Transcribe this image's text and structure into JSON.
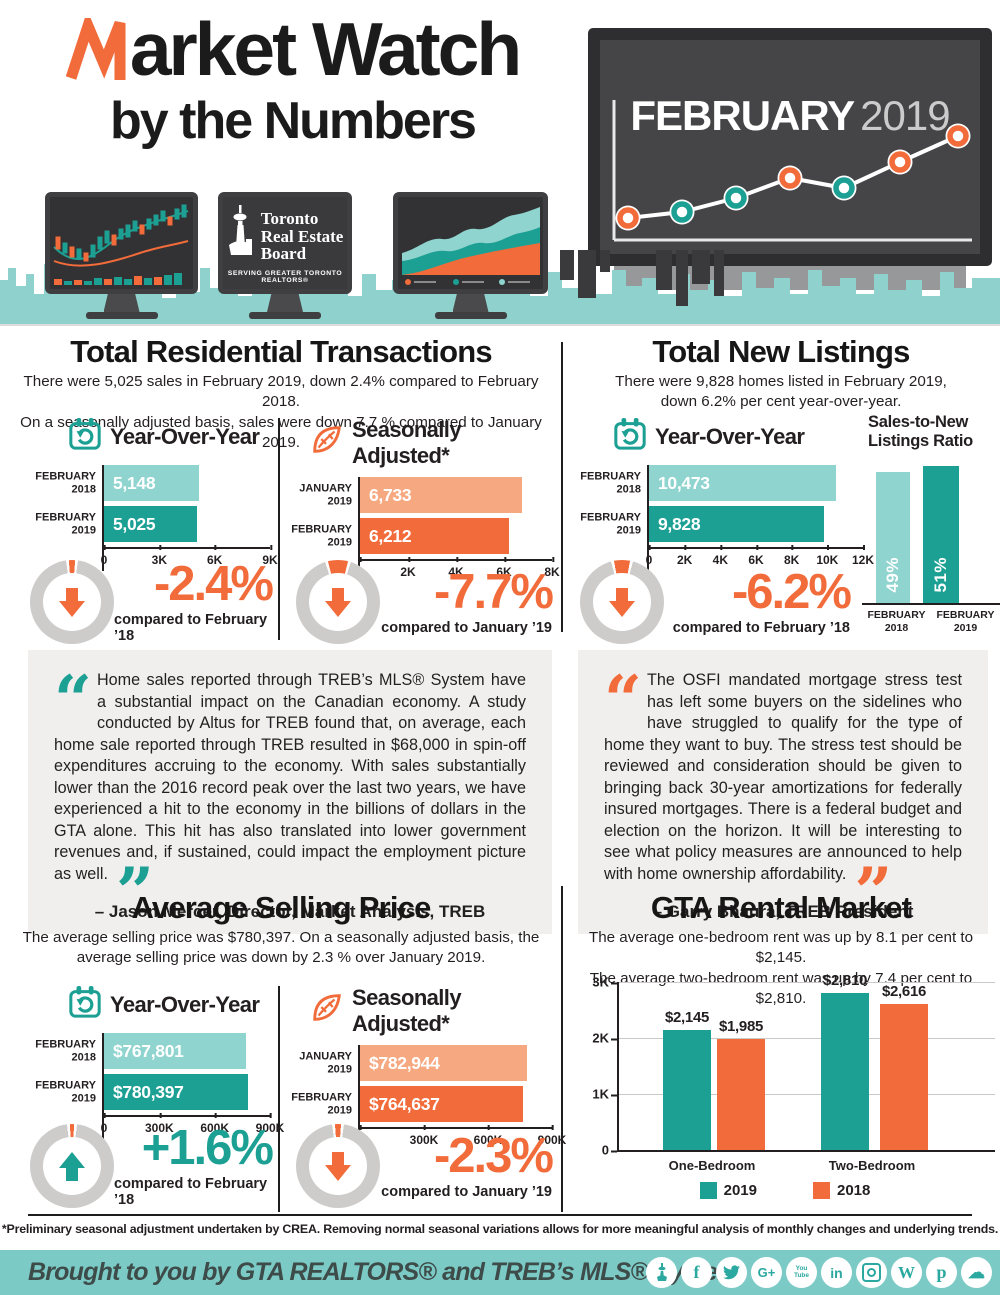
{
  "palette": {
    "teal": "#1DA094",
    "teal_light": "#8FD4CF",
    "orange": "#F26B3A",
    "orange_light": "#F6A981",
    "ring": "#CDCCCB",
    "ink": "#231F20",
    "band": "#8ED1CD",
    "footer_band": "#7CCAC6",
    "quote_bg": "#F0EFEE"
  },
  "header": {
    "title_rest": "arket Watch",
    "subtitle": "by the Numbers",
    "board": {
      "month": "FEBRUARY",
      "year": "2019"
    },
    "logo": {
      "line1": "Toronto",
      "line2": "Real Estate",
      "line3": "Board",
      "tagline": "SERVING GREATER TORONTO REALTORS®"
    }
  },
  "left": {
    "transactions": {
      "title": "Total Residential Transactions",
      "subtitle1": "There were 5,025 sales in February 2019, down 2.4% compared to February 2018.",
      "subtitle2": "On a seasonally adjusted basis, sales were down 7.7 % compared to January 2019.",
      "yoy": {
        "label": "Year-Over-Year",
        "axis_max": 9000,
        "bars": [
          {
            "line1": "FEBRUARY",
            "line2": "2018",
            "display": "5,148",
            "value": 5148
          },
          {
            "line1": "FEBRUARY",
            "line2": "2019",
            "display": "5,025",
            "value": 5025
          }
        ],
        "ticks": [
          {
            "label": "0",
            "value": 0
          },
          {
            "label": "3K",
            "value": 3000
          },
          {
            "label": "6K",
            "value": 6000
          },
          {
            "label": "9K",
            "value": 9000
          }
        ],
        "change": {
          "value": "-2.4%",
          "caption": "compared to February ’18",
          "pct": 2.4,
          "dir": "down",
          "color": "#F26B3A"
        }
      },
      "sa": {
        "label": "Seasonally Adjusted*",
        "axis_max": 8000,
        "bars": [
          {
            "line1": "JANUARY",
            "line2": "2019",
            "display": "6,733",
            "value": 6733
          },
          {
            "line1": "FEBRUARY",
            "line2": "2019",
            "display": "6,212",
            "value": 6212
          }
        ],
        "ticks": [
          {
            "label": "0",
            "value": 0
          },
          {
            "label": "2K",
            "value": 2000
          },
          {
            "label": "4K",
            "value": 4000
          },
          {
            "label": "6K",
            "value": 6000
          },
          {
            "label": "8K",
            "value": 8000
          }
        ],
        "change": {
          "value": "-7.7%",
          "caption": "compared to January ’19",
          "pct": 7.7,
          "dir": "down",
          "color": "#F26B3A"
        }
      }
    },
    "quote": {
      "text": "Home sales reported through TREB’s MLS® System have a substantial impact on the Canadian economy. A study conducted by Altus for TREB found that, on average, each home sale reported through TREB resulted in $68,000 in spin-off expenditures accruing to the economy. With sales substantially lower than the 2016 record peak over the last two years, we have experienced a hit to the economy in the billions of dollars in the GTA alone. This hit has also translated into lower government revenues and, if sustained, could impact the employment picture as well.",
      "attribution": "– Jason Mercer, Director, Market Analysis, TREB"
    },
    "price": {
      "title": "Average Selling Price",
      "subtitle1": "The average selling price was $780,397. On a seasonally adjusted basis, the",
      "subtitle2": "average selling price was down by 2.3 % over January 2019.",
      "yoy": {
        "label": "Year-Over-Year",
        "axis_max": 900000,
        "bars": [
          {
            "line1": "FEBRUARY",
            "line2": "2018",
            "display": "$767,801",
            "value": 767801
          },
          {
            "line1": "FEBRUARY",
            "line2": "2019",
            "display": "$780,397",
            "value": 780397
          }
        ],
        "ticks": [
          {
            "label": "0",
            "value": 0
          },
          {
            "label": "300K",
            "value": 300000
          },
          {
            "label": "600K",
            "value": 600000
          },
          {
            "label": "900K",
            "value": 900000
          }
        ],
        "change": {
          "value": "+1.6%",
          "caption": "compared to February ’18",
          "pct": 1.6,
          "dir": "up",
          "color": "#1DA094"
        }
      },
      "sa": {
        "label": "Seasonally Adjusted*",
        "axis_max": 900000,
        "bars": [
          {
            "line1": "JANUARY",
            "line2": "2019",
            "display": "$782,944",
            "value": 782944
          },
          {
            "line1": "FEBRUARY",
            "line2": "2019",
            "display": "$764,637",
            "value": 764637
          }
        ],
        "ticks": [
          {
            "label": "0",
            "value": 0
          },
          {
            "label": "300K",
            "value": 300000
          },
          {
            "label": "600K",
            "value": 600000
          },
          {
            "label": "900K",
            "value": 900000
          }
        ],
        "change": {
          "value": "-2.3%",
          "caption": "compared to January ’19",
          "pct": 2.3,
          "dir": "down",
          "color": "#F26B3A"
        }
      }
    }
  },
  "right": {
    "listings": {
      "title": "Total New Listings",
      "subtitle1": "There were 9,828 homes listed in February 2019,",
      "subtitle2": "down 6.2% per cent year-over-year.",
      "yoy": {
        "label": "Year-Over-Year",
        "axis_max": 12000,
        "bars": [
          {
            "line1": "FEBRUARY",
            "line2": "2018",
            "display": "10,473",
            "value": 10473
          },
          {
            "line1": "FEBRUARY",
            "line2": "2019",
            "display": "9,828",
            "value": 9828
          }
        ],
        "ticks": [
          {
            "label": "0",
            "value": 0
          },
          {
            "label": "2K",
            "value": 2000
          },
          {
            "label": "4K",
            "value": 4000
          },
          {
            "label": "6K",
            "value": 6000
          },
          {
            "label": "8K",
            "value": 8000
          },
          {
            "label": "10K",
            "value": 10000
          },
          {
            "label": "12K",
            "value": 12000
          }
        ],
        "change": {
          "value": "-6.2%",
          "caption": "compared to February ’18",
          "pct": 6.2,
          "dir": "down",
          "color": "#F26B3A"
        }
      },
      "ratio": {
        "title1": "Sales-to-New",
        "title2": "Listings Ratio",
        "axis_max": 53,
        "bars": [
          {
            "display": "49%",
            "value": 49,
            "label1": "FEBRUARY",
            "label2": "2018"
          },
          {
            "display": "51%",
            "value": 51,
            "label1": "FEBRUARY",
            "label2": "2019"
          }
        ]
      }
    },
    "quote": {
      "text": "The OSFI mandated mortgage stress test has left some buyers on the sidelines who have struggled to qualify for the type of home they want to buy. The stress test should be reviewed and consideration should be given to bringing back 30-year amortizations for federally insured mortgages. There is a federal budget and election on the horizon. It will be interesting to see what policy measures are announced to help with home ownership affordability.",
      "attribution": "– Garry Bhaura, TREB President"
    },
    "rental": {
      "title": "GTA Rental Market",
      "subtitle1": "The average one-bedroom rent was up by 8.1 per cent to $2,145.",
      "subtitle2": "The average two-bedroom rent was up by 7.4 per cent to $2,810.",
      "axis_max": 3000,
      "y_ticks": [
        {
          "label": "3K",
          "value": 3000
        },
        {
          "label": "2K",
          "value": 2000
        },
        {
          "label": "1K",
          "value": 1000
        },
        {
          "label": "0",
          "value": 0
        }
      ],
      "groups": [
        {
          "label": "One-Bedroom",
          "v2019": 2145,
          "d2019": "$2,145",
          "v2018": 1985,
          "d2018": "$1,985"
        },
        {
          "label": "Two-Bedroom",
          "v2019": 2810,
          "d2019": "$2,810",
          "v2018": 2616,
          "d2018": "$2,616"
        }
      ],
      "legend": [
        {
          "label": "2019"
        },
        {
          "label": "2018"
        }
      ]
    }
  },
  "footer": {
    "footnote": "*Preliminary seasonal adjustment undertaken by CREA. Removing normal seasonal variations allows for more meaningful analysis of monthly changes and underlying trends.",
    "band_text": "Brought to you by GTA REALTORS® and TREB’s MLS® System",
    "social": [
      "cn-tower",
      "facebook",
      "twitter",
      "google-plus",
      "youtube",
      "linkedin",
      "instagram",
      "wordpress",
      "pinterest",
      "soundcloud"
    ]
  },
  "chart_data": [
    {
      "type": "bar",
      "title": "Total Residential Transactions – Year-Over-Year",
      "categories": [
        "February 2018",
        "February 2019"
      ],
      "values": [
        5148,
        5025
      ],
      "xlim": [
        0,
        9000
      ],
      "ticks": [
        "0",
        "3K",
        "6K",
        "9K"
      ],
      "annotation": "-2.4% compared to February ’18"
    },
    {
      "type": "bar",
      "title": "Total Residential Transactions – Seasonally Adjusted",
      "categories": [
        "January 2019",
        "February 2019"
      ],
      "values": [
        6733,
        6212
      ],
      "xlim": [
        0,
        8000
      ],
      "ticks": [
        "0",
        "2K",
        "4K",
        "6K",
        "8K"
      ],
      "annotation": "-7.7% compared to January ’19"
    },
    {
      "type": "bar",
      "title": "Total New Listings – Year-Over-Year",
      "categories": [
        "February 2018",
        "February 2019"
      ],
      "values": [
        10473,
        9828
      ],
      "xlim": [
        0,
        12000
      ],
      "ticks": [
        "0",
        "2K",
        "4K",
        "6K",
        "8K",
        "10K",
        "12K"
      ],
      "annotation": "-6.2% compared to February ’18"
    },
    {
      "type": "bar",
      "title": "Sales-to-New Listings Ratio",
      "categories": [
        "February 2018",
        "February 2019"
      ],
      "values": [
        49,
        51
      ],
      "unit": "%"
    },
    {
      "type": "bar",
      "title": "Average Selling Price – Year-Over-Year",
      "categories": [
        "February 2018",
        "February 2019"
      ],
      "values": [
        767801,
        780397
      ],
      "xlim": [
        0,
        900000
      ],
      "ticks": [
        "0",
        "300K",
        "600K",
        "900K"
      ],
      "annotation": "+1.6% compared to February ’18"
    },
    {
      "type": "bar",
      "title": "Average Selling Price – Seasonally Adjusted",
      "categories": [
        "January 2019",
        "February 2019"
      ],
      "values": [
        782944,
        764637
      ],
      "xlim": [
        0,
        900000
      ],
      "ticks": [
        "0",
        "300K",
        "600K",
        "900K"
      ],
      "annotation": "-2.3% compared to January ’19"
    },
    {
      "type": "bar",
      "title": "GTA Rental Market",
      "categories": [
        "One-Bedroom",
        "Two-Bedroom"
      ],
      "series": [
        {
          "name": "2019",
          "values": [
            2145,
            2810
          ]
        },
        {
          "name": "2018",
          "values": [
            1985,
            2616
          ]
        }
      ],
      "ylim": [
        0,
        3000
      ],
      "ticks": [
        "0",
        "1K",
        "2K",
        "3K"
      ],
      "legend_position": "bottom"
    }
  ]
}
